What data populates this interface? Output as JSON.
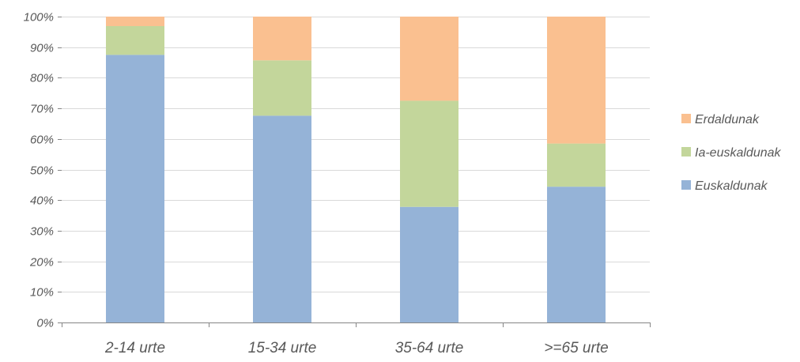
{
  "chart_data": {
    "type": "bar",
    "stacked": true,
    "percent": true,
    "categories": [
      "2-14 urte",
      "15-34 urte",
      "35-64 urte",
      ">=65 urte"
    ],
    "series": [
      {
        "name": "Euskaldunak",
        "values": [
          87.5,
          67.6,
          37.8,
          44.4
        ],
        "color": "#95b3d7"
      },
      {
        "name": "Ia-euskaldunak",
        "values": [
          9.4,
          18.1,
          34.7,
          14.1
        ],
        "color": "#c3d69b"
      },
      {
        "name": "Erdaldunak",
        "values": [
          3.1,
          14.3,
          27.5,
          41.5
        ],
        "color": "#fac090"
      }
    ],
    "ylim": [
      0,
      100
    ],
    "yticks": [
      0,
      10,
      20,
      30,
      40,
      50,
      60,
      70,
      80,
      90,
      100
    ],
    "ytick_labels": [
      "0%",
      "10%",
      "20%",
      "30%",
      "40%",
      "50%",
      "60%",
      "70%",
      "80%",
      "90%",
      "100%"
    ],
    "legend_order": [
      "Erdaldunak",
      "Ia-euskaldunak",
      "Euskaldunak"
    ],
    "legend_position": "right",
    "grid": true,
    "gridline_color": "#d9d9d9",
    "axis_color": "#868686"
  }
}
